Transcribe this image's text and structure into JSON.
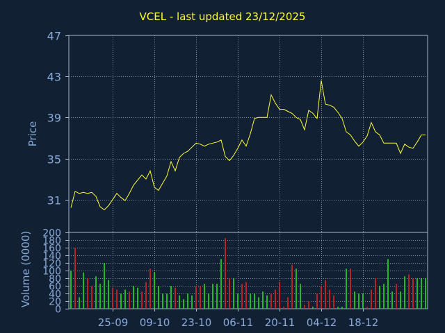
{
  "chart_data": {
    "title": "VCEL - last updated 23/12/2025",
    "colors": {
      "background": "#112033",
      "axis": "#a9b9cc",
      "tick_text": "#8aaad8",
      "grid": "#8a95a8",
      "price_line": "#ffff33",
      "volume_up": "#22cc22",
      "volume_down": "#cc2222"
    },
    "x_tick_labels": [
      "25-09",
      "09-10",
      "23-10",
      "06-11",
      "20-11",
      "04-12",
      "18-12"
    ],
    "x_tick_indices": [
      10,
      20,
      30,
      40,
      50,
      60,
      70
    ],
    "price_panel": {
      "type": "line",
      "ylabel": "Price",
      "ylim": [
        27.8,
        47
      ],
      "yticks": [
        31,
        35,
        39,
        43,
        47
      ],
      "values": [
        30.2,
        31.8,
        31.6,
        31.7,
        31.6,
        31.7,
        31.3,
        30.3,
        30.0,
        30.4,
        31.0,
        31.6,
        31.2,
        30.9,
        31.6,
        32.4,
        32.9,
        33.4,
        33.0,
        33.8,
        32.2,
        31.9,
        32.6,
        33.3,
        34.7,
        33.8,
        35.1,
        35.5,
        35.7,
        36.1,
        36.5,
        36.4,
        36.2,
        36.4,
        36.5,
        36.6,
        36.8,
        35.2,
        34.8,
        35.3,
        36.0,
        36.8,
        36.2,
        37.4,
        38.9,
        39.0,
        39.0,
        39.0,
        41.2,
        40.4,
        39.8,
        39.8,
        39.6,
        39.4,
        39.0,
        38.8,
        37.8,
        39.7,
        39.4,
        38.9,
        42.6,
        40.3,
        40.2,
        40.0,
        39.5,
        38.9,
        37.6,
        37.3,
        36.7,
        36.2,
        36.6,
        37.2,
        38.5,
        37.6,
        37.3,
        36.5,
        36.5,
        36.5,
        36.5,
        35.5,
        36.4,
        36.1,
        36.0,
        36.6,
        37.3,
        37.3
      ]
    },
    "volume_panel": {
      "type": "bar",
      "ylabel": "Volume (0000)",
      "ylim": [
        0,
        200
      ],
      "yticks": [
        0,
        20,
        40,
        60,
        80,
        100,
        120,
        140,
        160,
        180,
        200
      ],
      "values": [
        100,
        160,
        30,
        95,
        80,
        60,
        85,
        65,
        120,
        75,
        55,
        50,
        40,
        50,
        45,
        60,
        55,
        45,
        70,
        105,
        95,
        60,
        40,
        40,
        60,
        55,
        35,
        25,
        40,
        35,
        60,
        60,
        65,
        40,
        65,
        65,
        130,
        185,
        80,
        80,
        40,
        65,
        70,
        40,
        40,
        30,
        45,
        35,
        40,
        50,
        70,
        5,
        30,
        115,
        105,
        65,
        10,
        20,
        5,
        40,
        60,
        75,
        50,
        35,
        5,
        5,
        105,
        105,
        45,
        40,
        40,
        5,
        50,
        80,
        60,
        65,
        130,
        45,
        65,
        45,
        85,
        90,
        80,
        80,
        80,
        80
      ],
      "up": [
        1,
        0,
        1,
        1,
        0,
        0,
        1,
        1,
        1,
        1,
        0,
        0,
        1,
        1,
        0,
        1,
        1,
        0,
        0,
        0,
        1,
        1,
        1,
        1,
        1,
        0,
        1,
        1,
        1,
        1,
        0,
        0,
        1,
        1,
        1,
        1,
        1,
        0,
        0,
        1,
        1,
        0,
        0,
        1,
        1,
        1,
        1,
        1,
        0,
        0,
        0,
        0,
        0,
        0,
        1,
        1,
        0,
        0,
        1,
        0,
        0,
        0,
        0,
        0,
        1,
        1,
        1,
        0,
        1,
        1,
        1,
        0,
        0,
        0,
        1,
        1,
        1,
        1,
        0,
        1,
        1,
        0,
        0,
        1,
        1,
        1
      ]
    }
  }
}
